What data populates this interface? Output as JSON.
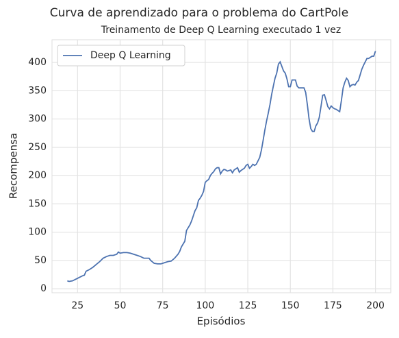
{
  "chart_data": {
    "type": "line",
    "title": "Curva de aprendizado para o problema do CartPole",
    "subtitle": "Treinamento de Deep Q Learning executado 1 vez",
    "xlabel": "Episódios",
    "ylabel": "Recompensa",
    "x": [
      19,
      20,
      22,
      24,
      26,
      28,
      29,
      30,
      32,
      34,
      36,
      38,
      40,
      42,
      44,
      46,
      48,
      49,
      50,
      52,
      54,
      56,
      58,
      60,
      62,
      64,
      66,
      67,
      68,
      70,
      72,
      74,
      76,
      78,
      80,
      82,
      84,
      85,
      86,
      88,
      89,
      90,
      91,
      92,
      93,
      94,
      95,
      96,
      97,
      98,
      99,
      100,
      101,
      102,
      103,
      104,
      105,
      106,
      107,
      108,
      109,
      110,
      111,
      112,
      113,
      114,
      115,
      116,
      117,
      118,
      119,
      120,
      121,
      122,
      123,
      124,
      125,
      126,
      127,
      128,
      129,
      130,
      131,
      132,
      133,
      134,
      135,
      136,
      137,
      138,
      139,
      140,
      141,
      142,
      143,
      144,
      145,
      146,
      147,
      148,
      149,
      150,
      151,
      152,
      153,
      154,
      155,
      156,
      157,
      158,
      159,
      160,
      161,
      162,
      163,
      164,
      165,
      166,
      167,
      168,
      169,
      170,
      171,
      172,
      173,
      174,
      175,
      176,
      177,
      178,
      179,
      180,
      181,
      182,
      183,
      184,
      185,
      186,
      187,
      188,
      189,
      190,
      191,
      192,
      193,
      194,
      195,
      196,
      197,
      198,
      199,
      200
    ],
    "series": [
      {
        "name": "Deep Q Learning",
        "color": "#4c72b0",
        "values": [
          14,
          13,
          14,
          17,
          20,
          23,
          24,
          31,
          34,
          38,
          43,
          48,
          54,
          57,
          59,
          59,
          61,
          65,
          63,
          64,
          64,
          63,
          61,
          59,
          57,
          54,
          54,
          54,
          50,
          45,
          44,
          44,
          46,
          48,
          49,
          54,
          61,
          66,
          74,
          84,
          103,
          108,
          113,
          120,
          129,
          138,
          143,
          156,
          160,
          165,
          172,
          188,
          191,
          193,
          200,
          204,
          207,
          212,
          214,
          214,
          203,
          208,
          211,
          210,
          208,
          209,
          210,
          205,
          210,
          212,
          214,
          206,
          209,
          211,
          213,
          218,
          220,
          213,
          216,
          220,
          218,
          220,
          226,
          232,
          245,
          262,
          280,
          296,
          310,
          325,
          343,
          358,
          372,
          381,
          397,
          401,
          393,
          385,
          381,
          371,
          357,
          357,
          369,
          369,
          369,
          358,
          355,
          355,
          355,
          355,
          347,
          325,
          300,
          283,
          278,
          278,
          288,
          293,
          303,
          322,
          342,
          343,
          333,
          322,
          318,
          323,
          320,
          318,
          317,
          315,
          313,
          333,
          355,
          365,
          372,
          368,
          357,
          360,
          361,
          360,
          365,
          368,
          378,
          388,
          395,
          401,
          407,
          407,
          409,
          411,
          411,
          420
        ]
      }
    ],
    "xlim": [
      10,
      209
    ],
    "ylim": [
      -7,
      440
    ],
    "xticks": [
      25,
      50,
      75,
      100,
      125,
      150,
      175,
      200
    ],
    "yticks": [
      0,
      50,
      100,
      150,
      200,
      250,
      300,
      350,
      400
    ],
    "grid": true,
    "legend": "upper left"
  }
}
